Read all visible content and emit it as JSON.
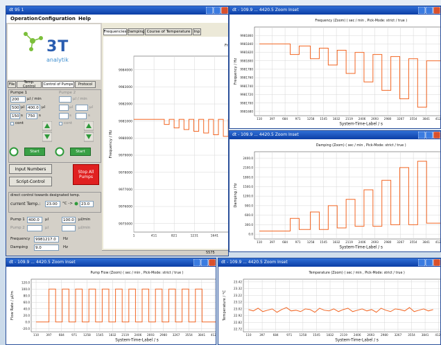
{
  "main_window": {
    "title": "dt 95 1",
    "menu": [
      "Operation",
      "Configuration",
      "Help"
    ],
    "logo": {
      "brand": "3T",
      "sub": "analytik"
    },
    "left_tabs": [
      "File",
      "Temp. Control",
      "Control of Pumps",
      "Protocol"
    ],
    "pump1": {
      "label": "Pumpe 1",
      "rate": "200",
      "rate_unit": "µl / min",
      "volume": "500",
      "volume_unit": "µl",
      "volume2": "400.0",
      "volume2_unit": "µl",
      "time1": "150",
      "time1_unit": "s",
      "time2": "750",
      "time2_unit": "s",
      "cont": "cont",
      "start": "Start"
    },
    "pump2": {
      "label": "Pumpe 2",
      "rate_unit": "µl / min",
      "volume_unit": "µl",
      "volume2_unit": "µl",
      "time1_unit": "s",
      "time2_unit": "s",
      "cont": "cont",
      "start": "Start"
    },
    "buttons": {
      "input": "Input Numbers",
      "script": "Script-Control",
      "stop": "Stop All Pumps"
    },
    "temp_control": {
      "heading": "direct control towards designated temp.",
      "current": "current Temp.:",
      "value": "23.00",
      "arrow": "°C ->",
      "target": "23.0"
    },
    "pump_rows": [
      {
        "name": "Pump 1",
        "volume": "400.0",
        "volume_unit": "µl",
        "rate": "100.0",
        "rate_unit": "µl/min"
      },
      {
        "name": "Pump 2",
        "volume_unit": "µl",
        "rate_unit": "µl/min"
      }
    ],
    "readouts": [
      {
        "name": "Frequency",
        "value": "9981217.0",
        "unit": "Hz"
      },
      {
        "name": "Damping",
        "value": "9.0",
        "unit": "Hz"
      }
    ],
    "chart_tabs": [
      "Frequencies",
      "Damping",
      "Course of Temperature",
      "Inp"
    ],
    "status": "5575"
  },
  "windows": [
    {
      "title": "dt - 109.9 ... 4420.5 Zoom Inset"
    },
    {
      "title": "dt - 109.9 ... 4420.5 Zoom Inset"
    },
    {
      "title": "dt - 109.9 ... 4420.5 Zoom Inset"
    },
    {
      "title": "dt - 109.9 ... 4420.5 Zoom Inset"
    }
  ],
  "chart_data": [
    {
      "type": "line",
      "title": "Frequency (",
      "ylabel": "Frequency / Hz",
      "color": "#f26522",
      "grid": true,
      "xlim": [
        1,
        2650
      ],
      "ylim": [
        9974500,
        9984800
      ],
      "xticks": [
        1,
        411,
        821,
        1231,
        1641,
        2051,
        2461
      ],
      "yticks": [
        9984000,
        9983000,
        9982000,
        9981000,
        9980000,
        9979000,
        9978000,
        9977000,
        9976000,
        9975000
      ],
      "x": [
        1,
        620,
        620,
        720,
        720,
        820,
        820,
        920,
        920,
        1020,
        1020,
        1120,
        1120,
        1220,
        1220,
        1320,
        1320,
        1420,
        1420,
        1520,
        1520,
        1620,
        1620,
        1720,
        1720,
        1820,
        1820,
        1920,
        1920,
        2020,
        2020,
        2120,
        2120,
        2220,
        2220,
        2320,
        2320,
        2420,
        2420,
        2520,
        2520,
        2650
      ],
      "values": [
        9981100,
        9981100,
        9980800,
        9980800,
        9981100,
        9981100,
        9980600,
        9980600,
        9981100,
        9981100,
        9980500,
        9980500,
        9981100,
        9981100,
        9980400,
        9980400,
        9981100,
        9981100,
        9980300,
        9980300,
        9981100,
        9981100,
        9980200,
        9980200,
        9981100,
        9981100,
        9980100,
        9980100,
        9981100,
        9981100,
        9980000,
        9980000,
        9981100,
        9981100,
        9979900,
        9979900,
        9981100,
        9981100,
        9979800,
        9979800,
        9981100,
        9981100
      ]
    },
    {
      "type": "line",
      "title": "Frequency (Zoom) ( sec / min , Pick-Mode: strict / true )",
      "ylabel": "Frequency / Hz",
      "xlabel": "System-Time-Label / s",
      "color": "#f26522",
      "grid": true,
      "xlim": [
        0,
        4250
      ],
      "ylim": [
        9981670,
        9981880
      ],
      "xticks": [
        110,
        397,
        684,
        971,
        1258,
        1545,
        1832,
        2119,
        2406,
        2693,
        2980,
        3267,
        3554,
        3841,
        4128
      ],
      "yticks": [
        9981860,
        9981840,
        9981820,
        9981800,
        9981780,
        9981760,
        9981740,
        9981720,
        9981700,
        9981680
      ],
      "x": [
        110,
        800,
        800,
        1000,
        1000,
        1250,
        1250,
        1450,
        1450,
        1650,
        1650,
        1850,
        1850,
        2050,
        2050,
        2250,
        2250,
        2450,
        2450,
        2650,
        2650,
        2850,
        2850,
        3050,
        3050,
        3250,
        3250,
        3450,
        3450,
        3650,
        3650,
        3850,
        3850,
        4200
      ],
      "values": [
        9981840,
        9981840,
        9981815,
        9981815,
        9981835,
        9981835,
        9981805,
        9981805,
        9981830,
        9981830,
        9981790,
        9981790,
        9981825,
        9981825,
        9981770,
        9981770,
        9981820,
        9981820,
        9981750,
        9981750,
        9981815,
        9981815,
        9981730,
        9981730,
        9981810,
        9981810,
        9981710,
        9981710,
        9981805,
        9981805,
        9981690,
        9981690,
        9981800,
        9981800
      ]
    },
    {
      "type": "line",
      "title": "Damping (Zoom) ( sec / min , Pick-Mode: strict / true )",
      "ylabel": "Damping / Hz",
      "xlabel": "System-Time-Label / s",
      "color": "#f26522",
      "grid": true,
      "xlim": [
        0,
        4250
      ],
      "ylim": [
        -150,
        2600
      ],
      "xticks": [
        110,
        397,
        684,
        971,
        1258,
        1545,
        1832,
        2119,
        2406,
        2693,
        2980,
        3267,
        3554,
        3841,
        4128
      ],
      "yticks": [
        {
          "value": 2400,
          "label": "2400.0"
        },
        {
          "value": 2100,
          "label": "2100.0"
        },
        {
          "value": 1800,
          "label": "1800.0"
        },
        {
          "value": 1500,
          "label": "1500.0"
        },
        {
          "value": 1200,
          "label": "1200.0"
        },
        {
          "value": 900,
          "label": "900.0"
        },
        {
          "value": 600,
          "label": "600.0"
        },
        {
          "value": 300,
          "label": "300.0"
        },
        {
          "value": 0,
          "label": "0.0"
        }
      ],
      "x": [
        110,
        800,
        800,
        1000,
        1000,
        1250,
        1250,
        1450,
        1450,
        1650,
        1650,
        1850,
        1850,
        2050,
        2050,
        2250,
        2250,
        2450,
        2450,
        2650,
        2650,
        2850,
        2850,
        3050,
        3050,
        3250,
        3250,
        3450,
        3450,
        3650,
        3650,
        3850,
        3850,
        4200
      ],
      "values": [
        100,
        100,
        500,
        500,
        150,
        150,
        700,
        700,
        150,
        150,
        900,
        900,
        200,
        200,
        1100,
        1100,
        250,
        250,
        1400,
        1400,
        250,
        250,
        1700,
        1700,
        300,
        300,
        2100,
        2100,
        300,
        300,
        2300,
        2300,
        350,
        350
      ]
    },
    {
      "type": "line",
      "title": "Pump Flow (Zoom) ( sec / min , Pick-Mode: strict / true )",
      "ylabel": "Flow Rate / µl/m",
      "xlabel": "System-Time-Label / s",
      "color": "#f26522",
      "grid": true,
      "xlim": [
        0,
        4250
      ],
      "ylim": [
        -30,
        130
      ],
      "xticks": [
        110,
        397,
        684,
        971,
        1258,
        1545,
        1832,
        2119,
        2406,
        2693,
        2980,
        3267,
        3554,
        3841,
        4128
      ],
      "yticks": [
        {
          "value": 120,
          "label": "120.0"
        },
        {
          "value": 100,
          "label": "100.0"
        },
        {
          "value": 80,
          "label": "80.0"
        },
        {
          "value": 60,
          "label": "60.0"
        },
        {
          "value": 40,
          "label": "40.0"
        },
        {
          "value": 20,
          "label": "20.0"
        },
        {
          "value": 0,
          "label": "0.0"
        },
        {
          "value": -20,
          "label": "-20.0"
        }
      ],
      "x": [
        110,
        400,
        400,
        550,
        550,
        700,
        700,
        850,
        850,
        1000,
        1000,
        1150,
        1150,
        1300,
        1300,
        1450,
        1450,
        1600,
        1600,
        1750,
        1750,
        1900,
        1900,
        2050,
        2050,
        2200,
        2200,
        2350,
        2350,
        2500,
        2500,
        2650,
        2650,
        2800,
        2800,
        2950,
        2950,
        3100,
        3100,
        3250,
        3250,
        3400,
        3400,
        3550,
        3550,
        3700,
        3700,
        3850,
        3850,
        4200
      ],
      "values": [
        0,
        0,
        100,
        100,
        0,
        0,
        100,
        100,
        0,
        0,
        100,
        100,
        0,
        0,
        100,
        100,
        0,
        0,
        100,
        100,
        0,
        0,
        100,
        100,
        0,
        0,
        100,
        100,
        0,
        0,
        100,
        100,
        0,
        0,
        100,
        100,
        0,
        0,
        100,
        100,
        0,
        0,
        100,
        100,
        0,
        0,
        100,
        100,
        0,
        0
      ]
    },
    {
      "type": "line",
      "title": "Temperature (Zoom) ( sec / min , Pick-Mode: strict / true )",
      "ylabel": "Temperature / °C",
      "xlabel": "System-Time-Label / s",
      "color": "#f26522",
      "grid": true,
      "xlim": [
        0,
        4250
      ],
      "ylim": [
        22.68,
        23.46
      ],
      "xticks": [
        110,
        397,
        684,
        971,
        1258,
        1545,
        1832,
        2119,
        2406,
        2693,
        2980,
        3267,
        3554,
        3841,
        4128
      ],
      "yticks": [
        23.42,
        23.32,
        23.22,
        23.12,
        23.02,
        22.92,
        22.82,
        22.72
      ],
      "x": [
        110,
        210,
        310,
        410,
        510,
        610,
        710,
        810,
        910,
        1010,
        1110,
        1210,
        1310,
        1410,
        1510,
        1610,
        1710,
        1810,
        1910,
        2010,
        2110,
        2210,
        2310,
        2410,
        2510,
        2610,
        2710,
        2810,
        2910,
        3010,
        3110,
        3210,
        3310,
        3410,
        3510,
        3610,
        3710,
        3810,
        3910,
        4010
      ],
      "values": [
        23.01,
        22.99,
        23.03,
        22.98,
        23.0,
        23.02,
        22.97,
        23.01,
        23.04,
        22.99,
        23.0,
        22.98,
        23.02,
        23.01,
        22.97,
        23.03,
        23.0,
        22.99,
        23.02,
        22.98,
        23.01,
        23.03,
        22.98,
        23.0,
        23.02,
        22.99,
        23.01,
        22.97,
        23.03,
        23.0,
        22.98,
        23.02,
        23.01,
        22.99,
        23.04,
        22.98,
        23.0,
        23.02,
        22.99,
        23.01
      ]
    }
  ]
}
